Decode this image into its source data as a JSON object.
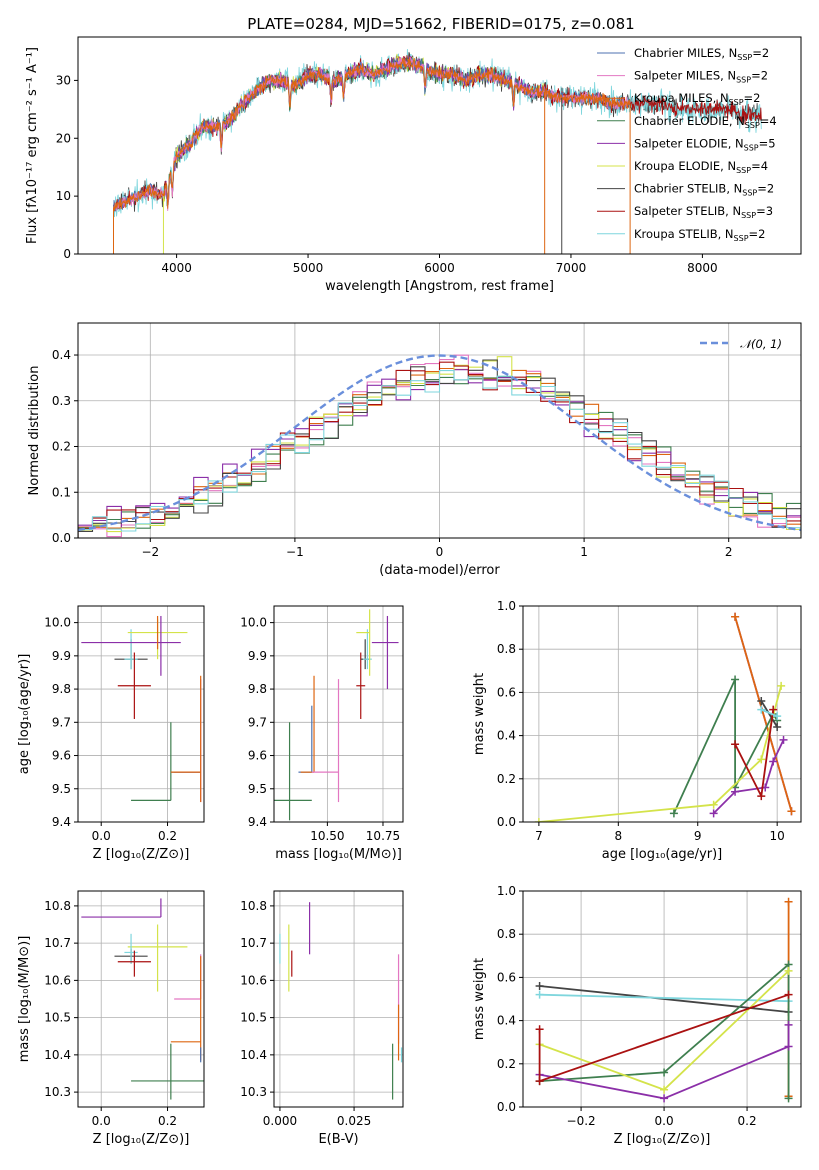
{
  "title": "PLATE=0284, MJD=51662, FIBERID=0175, z=0.081",
  "colors": {
    "chabrier_miles": "#4c72b0",
    "salpeter_miles": "#e377c2",
    "kroupa_miles": "#dd6611",
    "chabrier_elodie": "#3f7f4f",
    "salpeter_elodie": "#8b2fa8",
    "kroupa_elodie": "#d4e34a",
    "chabrier_stelib": "#444444",
    "salpeter_stelib": "#aa1111",
    "kroupa_stelib": "#7fd6dd",
    "normal": "#6a8fdb"
  },
  "chart_data": [
    {
      "type": "line",
      "id": "spectrum",
      "xlabel": "wavelength [Angstrom, rest frame]",
      "ylabel": "Flux [fλ10⁻¹⁷ erg cm⁻² s⁻¹ A⁻¹]",
      "xlim": [
        3250,
        8750
      ],
      "ylim": [
        0,
        37.5
      ],
      "xticks": [
        4000,
        5000,
        6000,
        7000,
        8000
      ],
      "yticks": [
        0,
        10,
        20,
        30
      ],
      "grid": false,
      "legend_position": "top-right",
      "legend": [
        {
          "label": "Chabrier MILES, N",
          "sub": "SSP",
          "suffix": "=2",
          "color": "chabrier_miles"
        },
        {
          "label": "Salpeter MILES, N",
          "sub": "SSP",
          "suffix": "=2",
          "color": "salpeter_miles"
        },
        {
          "label": "Kroupa MILES, N",
          "sub": "SSP",
          "suffix": "=2",
          "color": "kroupa_miles"
        },
        {
          "label": "Chabrier ELODIE, N",
          "sub": "SSP",
          "suffix": "=4",
          "color": "chabrier_elodie"
        },
        {
          "label": "Salpeter ELODIE, N",
          "sub": "SSP",
          "suffix": "=5",
          "color": "salpeter_elodie"
        },
        {
          "label": "Kroupa ELODIE, N",
          "sub": "SSP",
          "suffix": "=4",
          "color": "kroupa_elodie"
        },
        {
          "label": "Chabrier STELIB, N",
          "sub": "SSP",
          "suffix": "=2",
          "color": "chabrier_stelib"
        },
        {
          "label": "Salpeter STELIB, N",
          "sub": "SSP",
          "suffix": "=3",
          "color": "salpeter_stelib"
        },
        {
          "label": "Kroupa STELIB, N",
          "sub": "SSP",
          "suffix": "=2",
          "color": "kroupa_stelib"
        }
      ],
      "envelope_x": [
        3520,
        3600,
        3700,
        3800,
        3900,
        4000,
        4100,
        4200,
        4300,
        4400,
        4500,
        4600,
        4700,
        4800,
        4900,
        5000,
        5100,
        5200,
        5300,
        5400,
        5500,
        5600,
        5700,
        5800,
        5900,
        6000,
        6100,
        6200,
        6300,
        6400,
        6500,
        6600,
        6700,
        6800,
        6900,
        7000,
        7100,
        7200,
        7300,
        7400,
        7500,
        7600,
        7700,
        7800,
        7900,
        8000,
        8100,
        8200,
        8300,
        8400
      ],
      "envelope_y": [
        8,
        9,
        10,
        11,
        10,
        17,
        19,
        22,
        22,
        23,
        26,
        28,
        30,
        30,
        29,
        31,
        31,
        30,
        31,
        32,
        31,
        32,
        33,
        33,
        32,
        31,
        31,
        30,
        31,
        31,
        30,
        29,
        28,
        28,
        27,
        27,
        27,
        27,
        26,
        26,
        26,
        26,
        26,
        25,
        25,
        25,
        25,
        25,
        24,
        24
      ],
      "miles_extent": [
        3520,
        7450
      ],
      "elodie_extent": [
        3900,
        6800
      ],
      "stelib_extent": [
        3520,
        8450
      ],
      "absorption_dips": [
        3934,
        3968,
        4340,
        4861,
        5175,
        5270,
        5890,
        6563
      ]
    },
    {
      "type": "bar",
      "id": "residuals",
      "xlabel": "(data-model)/error",
      "ylabel": "Normed distribution",
      "xlim": [
        -2.5,
        2.5
      ],
      "ylim": [
        0,
        0.47
      ],
      "xticks": [
        -2,
        -1,
        0,
        1,
        2
      ],
      "yticks": [
        0.0,
        0.1,
        0.2,
        0.3,
        0.4
      ],
      "bin_width": 0.1,
      "grid": true,
      "legend_position": "top-right",
      "normal_label": "𝒩(0, 1)",
      "series_colors": [
        "salpeter_miles",
        "kroupa_miles",
        "chabrier_elodie",
        "salpeter_elodie",
        "kroupa_elodie",
        "chabrier_stelib",
        "salpeter_stelib",
        "kroupa_stelib"
      ]
    },
    {
      "type": "scatter",
      "id": "age_vs_Z",
      "xlabel": "Z [log₁₀(Z/Z⊙)]",
      "ylabel": "age  [log₁₀(age/yr)]",
      "xlim": [
        -0.07,
        0.31
      ],
      "ylim": [
        9.4,
        10.05
      ],
      "xticks": [
        0.0,
        0.2
      ],
      "yticks": [
        9.4,
        9.5,
        9.6,
        9.7,
        9.8,
        9.9,
        10.0
      ],
      "grid": true,
      "points": [
        {
          "series": "chabrier_stelib",
          "x": 0.09,
          "y": 9.89,
          "xerr": [
            0.05,
            0.05
          ],
          "yerr": [
            0.03,
            0.06
          ]
        },
        {
          "series": "kroupa_stelib",
          "x": 0.09,
          "y": 9.89,
          "xerr": [
            0.02,
            0.02
          ],
          "yerr": [
            0.03,
            0.09
          ]
        },
        {
          "series": "salpeter_stelib",
          "x": 0.1,
          "y": 9.81,
          "xerr": [
            0.05,
            0.05
          ],
          "yerr": [
            0.1,
            0.1
          ]
        },
        {
          "series": "kroupa_elodie",
          "x": 0.17,
          "y": 9.97,
          "xerr": [
            0.09,
            0.09
          ],
          "yerr": [
            0.08,
            0.04
          ]
        },
        {
          "series": "salpeter_elodie",
          "x": 0.18,
          "y": 9.94,
          "xerr": [
            0.24,
            0.06
          ],
          "yerr": [
            0.1,
            0.08
          ]
        },
        {
          "series": "kroupa_miles",
          "x": 0.17,
          "y": 9.97,
          "xerr": [
            0.0,
            0.0
          ],
          "yerr": [
            0.05,
            0.05
          ]
        },
        {
          "series": "chabrier_elodie",
          "x": 0.21,
          "y": 9.465,
          "xerr": [
            0.12,
            0.0
          ],
          "yerr": [
            0.0,
            0.235
          ]
        },
        {
          "series": "salpeter_miles",
          "x": 0.3,
          "y": 9.55,
          "xerr": [
            0.08,
            0.0
          ],
          "yerr": [
            0.09,
            0.28
          ]
        },
        {
          "series": "chabrier_miles",
          "x": 0.3,
          "y": 9.55,
          "xerr": [
            0.09,
            0.0
          ],
          "yerr": [
            0.0,
            0.0
          ]
        },
        {
          "series": "kroupa_miles",
          "x": 0.3,
          "y": 9.55,
          "xerr": [
            0.09,
            0.0
          ],
          "yerr": [
            0.09,
            0.29
          ]
        }
      ]
    },
    {
      "type": "scatter",
      "id": "age_vs_mass",
      "xlabel": "mass [log₁₀(M/M⊙)]",
      "ylabel": "",
      "xlim": [
        10.26,
        10.84
      ],
      "ylim": [
        9.4,
        10.05
      ],
      "xticks": [
        10.25,
        10.5,
        10.75
      ],
      "yticks": [
        9.4,
        9.5,
        9.6,
        9.7,
        9.8,
        9.9,
        10.0
      ],
      "grid": true,
      "points": [
        {
          "series": "chabrier_elodie",
          "x": 10.33,
          "y": 9.465,
          "xerr": [
            0.1,
            0.1
          ],
          "yerr": [
            0.06,
            0.235
          ]
        },
        {
          "series": "chabrier_miles",
          "x": 10.43,
          "y": 9.55,
          "xerr": [
            0.06,
            0.0
          ],
          "yerr": [
            0.0,
            0.2
          ]
        },
        {
          "series": "kroupa_miles",
          "x": 10.44,
          "y": 9.55,
          "xerr": [
            0.06,
            0.0
          ],
          "yerr": [
            0.0,
            0.29
          ]
        },
        {
          "series": "salpeter_miles",
          "x": 10.55,
          "y": 9.55,
          "xerr": [
            0.12,
            0.0
          ],
          "yerr": [
            0.09,
            0.28
          ]
        },
        {
          "series": "salpeter_stelib",
          "x": 10.65,
          "y": 9.81,
          "xerr": [
            0.02,
            0.02
          ],
          "yerr": [
            0.1,
            0.1
          ]
        },
        {
          "series": "chabrier_stelib",
          "x": 10.67,
          "y": 9.89,
          "xerr": [
            0.02,
            0.02
          ],
          "yerr": [
            0.03,
            0.06
          ]
        },
        {
          "series": "kroupa_stelib",
          "x": 10.68,
          "y": 9.89,
          "xerr": [
            0.02,
            0.02
          ],
          "yerr": [
            0.03,
            0.09
          ]
        },
        {
          "series": "kroupa_elodie",
          "x": 10.69,
          "y": 9.97,
          "xerr": [
            0.06,
            0.0
          ],
          "yerr": [
            0.13,
            0.07
          ]
        },
        {
          "series": "salpeter_elodie",
          "x": 10.77,
          "y": 9.94,
          "xerr": [
            0.07,
            0.05
          ],
          "yerr": [
            0.14,
            0.08
          ]
        }
      ]
    },
    {
      "type": "line",
      "id": "weight_vs_age",
      "xlabel": "age  [log₁₀(age/yr)]",
      "ylabel": "mass weight",
      "xlim": [
        6.8,
        10.3
      ],
      "ylim": [
        0,
        1.0
      ],
      "xticks": [
        7,
        8,
        9,
        10
      ],
      "yticks": [
        0.0,
        0.2,
        0.4,
        0.6,
        0.8,
        1.0
      ],
      "grid": true,
      "series": [
        {
          "name": "chabrier_miles",
          "x": [
            9.47,
            10.18
          ],
          "y": [
            0.95,
            0.05
          ]
        },
        {
          "name": "salpeter_miles",
          "x": [
            9.47,
            10.18
          ],
          "y": [
            0.95,
            0.05
          ]
        },
        {
          "name": "kroupa_miles",
          "x": [
            9.47,
            10.18
          ],
          "y": [
            0.95,
            0.05
          ]
        },
        {
          "name": "chabrier_elodie",
          "x": [
            8.7,
            9.47,
            9.47,
            9.95,
            10.0
          ],
          "y": [
            0.04,
            0.66,
            0.16,
            0.5,
            0.47
          ]
        },
        {
          "name": "salpeter_elodie",
          "x": [
            9.2,
            9.47,
            9.85,
            9.95,
            10.08
          ],
          "y": [
            0.04,
            0.14,
            0.16,
            0.28,
            0.38
          ]
        },
        {
          "name": "kroupa_elodie",
          "x": [
            7.0,
            9.2,
            9.8,
            10.05
          ],
          "y": [
            0.0,
            0.08,
            0.29,
            0.63
          ]
        },
        {
          "name": "chabrier_stelib",
          "x": [
            9.8,
            10.0
          ],
          "y": [
            0.56,
            0.44
          ]
        },
        {
          "name": "salpeter_stelib",
          "x": [
            9.47,
            9.8,
            9.95
          ],
          "y": [
            0.36,
            0.12,
            0.52
          ]
        },
        {
          "name": "kroupa_stelib",
          "x": [
            9.8,
            10.0
          ],
          "y": [
            0.52,
            0.49
          ]
        }
      ]
    },
    {
      "type": "scatter",
      "id": "mass_vs_Z",
      "xlabel": "Z [log₁₀(Z/Z⊙)]",
      "ylabel": "mass [log₁₀(M/M⊙)]",
      "xlim": [
        -0.07,
        0.31
      ],
      "ylim": [
        10.26,
        10.84
      ],
      "xticks": [
        0.0,
        0.2
      ],
      "yticks": [
        10.3,
        10.4,
        10.5,
        10.6,
        10.7,
        10.8
      ],
      "grid": true,
      "points": [
        {
          "series": "salpeter_elodie",
          "x": 0.18,
          "y": 10.77,
          "xerr": [
            0.24,
            0.0
          ],
          "yerr": [
            0.0,
            0.05
          ]
        },
        {
          "series": "kroupa_elodie",
          "x": 0.17,
          "y": 10.69,
          "xerr": [
            0.09,
            0.09
          ],
          "yerr": [
            0.12,
            0.06
          ]
        },
        {
          "series": "chabrier_stelib",
          "x": 0.09,
          "y": 10.665,
          "xerr": [
            0.05,
            0.05
          ],
          "yerr": [
            0.02,
            0.02
          ]
        },
        {
          "series": "kroupa_stelib",
          "x": 0.09,
          "y": 10.675,
          "xerr": [
            0.02,
            0.02
          ],
          "yerr": [
            0.03,
            0.05
          ]
        },
        {
          "series": "salpeter_stelib",
          "x": 0.1,
          "y": 10.65,
          "xerr": [
            0.05,
            0.05
          ],
          "yerr": [
            0.04,
            0.03
          ]
        },
        {
          "series": "salpeter_miles",
          "x": 0.3,
          "y": 10.55,
          "xerr": [
            0.08,
            0.0
          ],
          "yerr": [
            0.0,
            0.12
          ]
        },
        {
          "series": "kroupa_miles",
          "x": 0.3,
          "y": 10.435,
          "xerr": [
            0.09,
            0.0
          ],
          "yerr": [
            0.05,
            0.23
          ]
        },
        {
          "series": "chabrier_miles",
          "x": 0.3,
          "y": 10.42,
          "xerr": [
            0.0,
            0.0
          ],
          "yerr": [
            0.04,
            0.0
          ]
        },
        {
          "series": "chabrier_elodie",
          "x": 0.21,
          "y": 10.33,
          "xerr": [
            0.12,
            0.1
          ],
          "yerr": [
            0.05,
            0.1
          ]
        }
      ]
    },
    {
      "type": "scatter",
      "id": "mass_vs_ebv",
      "xlabel": "E(B-V)",
      "ylabel": "",
      "xlim": [
        -0.002,
        0.0415
      ],
      "ylim": [
        10.26,
        10.84
      ],
      "xticks": [
        0.0,
        0.025
      ],
      "yticks": [
        10.3,
        10.4,
        10.5,
        10.6,
        10.7,
        10.8
      ],
      "grid": true,
      "points": [
        {
          "series": "kroupa_stelib",
          "x": 0.0,
          "y": 10.675,
          "yerr": [
            0.03,
            0.05
          ]
        },
        {
          "series": "kroupa_elodie",
          "x": 0.003,
          "y": 10.69,
          "yerr": [
            0.12,
            0.06
          ]
        },
        {
          "series": "salpeter_stelib",
          "x": 0.004,
          "y": 10.65,
          "yerr": [
            0.04,
            0.03
          ]
        },
        {
          "series": "salpeter_elodie",
          "x": 0.01,
          "y": 10.77,
          "yerr": [
            0.1,
            0.04
          ]
        },
        {
          "series": "chabrier_elodie",
          "x": 0.038,
          "y": 10.33,
          "yerr": [
            0.05,
            0.1
          ]
        },
        {
          "series": "salpeter_miles",
          "x": 0.04,
          "y": 10.55,
          "yerr": [
            0.12,
            0.12
          ]
        },
        {
          "series": "kroupa_miles",
          "x": 0.04,
          "y": 10.435,
          "yerr": [
            0.05,
            0.1
          ]
        },
        {
          "series": "kroupa_stelib",
          "x": 0.041,
          "y": 10.42,
          "yerr": [
            0.04,
            0.0
          ]
        }
      ]
    },
    {
      "type": "line",
      "id": "weight_vs_Z",
      "xlabel": "Z [log₁₀(Z/Z⊙)]",
      "ylabel": "mass weight",
      "xlim": [
        -0.34,
        0.33
      ],
      "ylim": [
        0,
        1.0
      ],
      "xticks": [
        -0.2,
        0.0,
        0.2
      ],
      "yticks": [
        0.0,
        0.2,
        0.4,
        0.6,
        0.8,
        1.0
      ],
      "grid": true,
      "series": [
        {
          "name": "kroupa_miles",
          "x": [
            0.3,
            0.3
          ],
          "y": [
            0.95,
            0.05
          ]
        },
        {
          "name": "chabrier_stelib",
          "x": [
            -0.3,
            0.3
          ],
          "y": [
            0.56,
            0.44
          ]
        },
        {
          "name": "kroupa_stelib",
          "x": [
            -0.3,
            0.3
          ],
          "y": [
            0.52,
            0.49
          ]
        },
        {
          "name": "chabrier_elodie",
          "x": [
            -0.3,
            0.0,
            0.3,
            0.3
          ],
          "y": [
            0.12,
            0.16,
            0.66,
            0.04
          ]
        },
        {
          "name": "salpeter_elodie",
          "x": [
            -0.3,
            0.0,
            0.3,
            0.3
          ],
          "y": [
            0.15,
            0.04,
            0.28,
            0.38
          ]
        },
        {
          "name": "kroupa_elodie",
          "x": [
            -0.3,
            0.0,
            0.3
          ],
          "y": [
            0.29,
            0.08,
            0.63
          ]
        },
        {
          "name": "salpeter_stelib",
          "x": [
            -0.3,
            -0.3,
            0.3
          ],
          "y": [
            0.36,
            0.12,
            0.52
          ]
        }
      ]
    }
  ]
}
